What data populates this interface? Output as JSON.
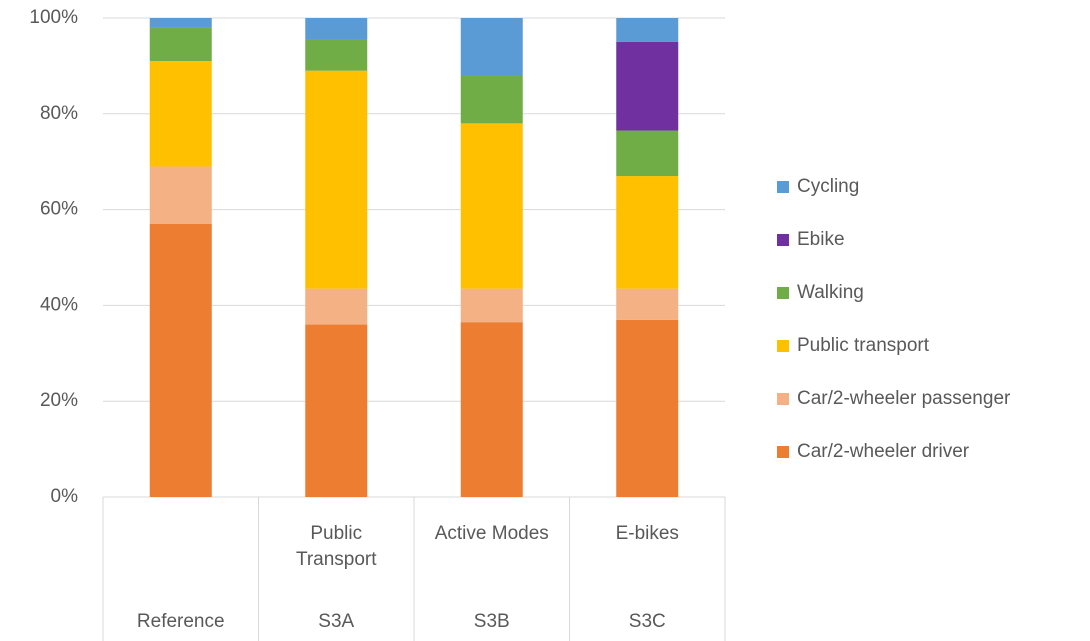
{
  "chart_data": {
    "type": "stacked_bar",
    "categories": [
      "Reference",
      "S3A",
      "S3B",
      "S3C"
    ],
    "category_subtitles": [
      null,
      "Public Transport",
      "Active Modes",
      "E-bikes"
    ],
    "series": [
      {
        "name": "Car/2-wheeler driver",
        "color": "#ED7D31",
        "values": [
          57,
          36,
          36.5,
          37
        ]
      },
      {
        "name": "Car/2-wheeler passenger",
        "color": "#F4B183",
        "values": [
          12,
          7.5,
          7,
          6.5
        ]
      },
      {
        "name": "Public transport",
        "color": "#FFC000",
        "values": [
          22,
          45.5,
          34.5,
          23.5
        ]
      },
      {
        "name": "Walking",
        "color": "#70AD47",
        "values": [
          7,
          6.5,
          10,
          9.5
        ]
      },
      {
        "name": "Ebike",
        "color": "#7030A0",
        "values": [
          0,
          0,
          0,
          18.5
        ]
      },
      {
        "name": "Cycling",
        "color": "#5B9BD5",
        "values": [
          2,
          4.5,
          12,
          5
        ]
      }
    ],
    "ylim": [
      0,
      100
    ],
    "yticks": [
      {
        "value": 0,
        "label": "0%"
      },
      {
        "value": 20,
        "label": "20%"
      },
      {
        "value": 40,
        "label": "40%"
      },
      {
        "value": 60,
        "label": "60%"
      },
      {
        "value": 80,
        "label": "80%"
      },
      {
        "value": 100,
        "label": "100%"
      }
    ],
    "grid": true,
    "legend": "right"
  }
}
